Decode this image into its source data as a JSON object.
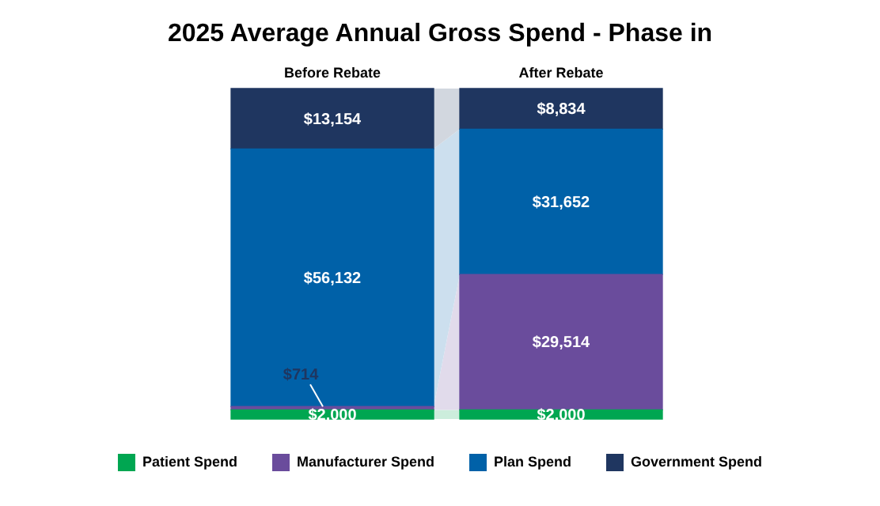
{
  "chart_data": {
    "type": "bar",
    "title": "2025 Average Annual Gross Spend - Phase in",
    "categories": [
      "Before Rebate",
      "After Rebate"
    ],
    "stacked": true,
    "data_labels": true,
    "legend": "bottom",
    "series": [
      {
        "name": "Patient Spend",
        "color": "#00a651",
        "values": [
          2000,
          2000
        ],
        "value_labels": [
          "$2,000",
          "$2,000"
        ]
      },
      {
        "name": "Manufacturer Spend",
        "color": "#6a4c9c",
        "values": [
          714,
          29514
        ],
        "value_labels": [
          "$714",
          "$29,514"
        ]
      },
      {
        "name": "Plan Spend",
        "color": "#0061a8",
        "values": [
          56132,
          31652
        ],
        "value_labels": [
          "$56,132",
          "$31,652"
        ]
      },
      {
        "name": "Government Spend",
        "color": "#1f3660",
        "values": [
          13154,
          8834
        ],
        "value_labels": [
          "$13,154",
          "$8,834"
        ]
      }
    ]
  }
}
